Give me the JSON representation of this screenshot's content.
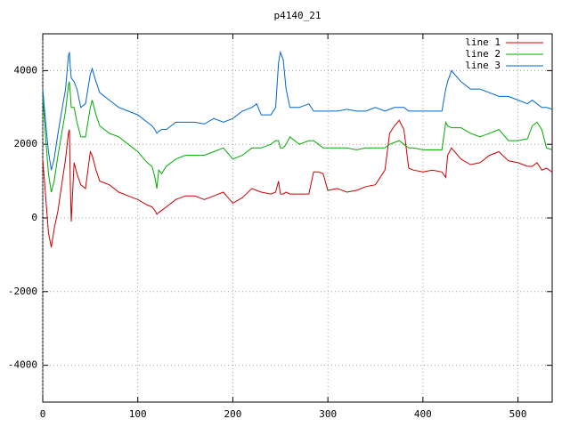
{
  "chart_data": {
    "type": "line",
    "title": "p4140_21",
    "x": [
      0,
      3,
      6,
      9,
      12,
      16,
      20,
      24,
      27,
      28,
      29,
      30,
      33,
      36,
      40,
      45,
      50,
      52,
      56,
      60,
      70,
      80,
      90,
      100,
      110,
      115,
      118,
      120,
      122,
      125,
      130,
      140,
      150,
      160,
      170,
      180,
      190,
      200,
      210,
      220,
      225,
      230,
      240,
      245,
      248,
      250,
      253,
      256,
      260,
      270,
      280,
      285,
      290,
      295,
      300,
      310,
      320,
      330,
      340,
      350,
      360,
      365,
      370,
      375,
      380,
      385,
      390,
      400,
      410,
      420,
      424,
      426,
      430,
      440,
      450,
      460,
      470,
      480,
      490,
      500,
      510,
      515,
      520,
      525,
      530,
      536
    ],
    "series": [
      {
        "name": "line 1",
        "color": "#cc0000",
        "values": [
          1600,
          600,
          -400,
          -800,
          -300,
          200,
          900,
          1600,
          2300,
          2400,
          1000,
          -100,
          1500,
          1200,
          900,
          800,
          1800,
          1700,
          1300,
          1000,
          900,
          700,
          600,
          500,
          350,
          300,
          200,
          100,
          150,
          200,
          300,
          500,
          600,
          600,
          500,
          600,
          700,
          400,
          550,
          800,
          750,
          700,
          650,
          700,
          1000,
          650,
          650,
          700,
          650,
          650,
          650,
          1250,
          1250,
          1200,
          750,
          800,
          700,
          750,
          850,
          900,
          1300,
          2300,
          2500,
          2650,
          2400,
          1350,
          1300,
          1250,
          1300,
          1250,
          1100,
          1700,
          1900,
          1600,
          1450,
          1500,
          1700,
          1800,
          1550,
          1500,
          1400,
          1400,
          1500,
          1300,
          1350,
          1250
        ]
      },
      {
        "name": "line 2",
        "color": "#00aa00",
        "values": [
          3300,
          2200,
          1200,
          700,
          1000,
          1700,
          2300,
          2900,
          3600,
          3700,
          3400,
          3000,
          3000,
          2600,
          2200,
          2200,
          3000,
          3200,
          2800,
          2500,
          2300,
          2200,
          2000,
          1800,
          1500,
          1400,
          1100,
          800,
          1300,
          1200,
          1400,
          1600,
          1700,
          1700,
          1700,
          1800,
          1900,
          1600,
          1700,
          1900,
          1900,
          1900,
          2000,
          2100,
          2100,
          1900,
          1900,
          2000,
          2200,
          2000,
          2100,
          2100,
          2000,
          1900,
          1900,
          1900,
          1900,
          1850,
          1900,
          1900,
          1900,
          2000,
          2050,
          2100,
          2000,
          1900,
          1900,
          1850,
          1850,
          1850,
          2600,
          2500,
          2450,
          2450,
          2300,
          2200,
          2300,
          2400,
          2100,
          2100,
          2150,
          2500,
          2600,
          2400,
          1900,
          1850
        ]
      },
      {
        "name": "line 3",
        "color": "#0066cc",
        "values": [
          3500,
          2600,
          1800,
          1300,
          1600,
          2300,
          2900,
          3500,
          4400,
          4500,
          4100,
          3800,
          3700,
          3500,
          3000,
          3100,
          3900,
          4050,
          3700,
          3400,
          3200,
          3000,
          2900,
          2800,
          2600,
          2500,
          2400,
          2300,
          2350,
          2400,
          2400,
          2600,
          2600,
          2600,
          2550,
          2700,
          2600,
          2700,
          2900,
          3000,
          3100,
          2800,
          2800,
          3000,
          4200,
          4500,
          4300,
          3500,
          3000,
          3000,
          3100,
          2900,
          2900,
          2900,
          2900,
          2900,
          2950,
          2900,
          2900,
          3000,
          2900,
          2950,
          3000,
          3000,
          3000,
          2900,
          2900,
          2900,
          2900,
          2900,
          3500,
          3700,
          4000,
          3700,
          3500,
          3500,
          3400,
          3300,
          3300,
          3200,
          3100,
          3200,
          3100,
          3000,
          3000,
          2950
        ]
      }
    ],
    "xlim": [
      0,
      536
    ],
    "ylim": [
      -5000,
      5000
    ],
    "xticks": [
      0,
      100,
      200,
      300,
      400,
      500
    ],
    "yticks": [
      -4000,
      -2000,
      0,
      2000,
      4000
    ],
    "grid": true,
    "legend": "top-right"
  }
}
